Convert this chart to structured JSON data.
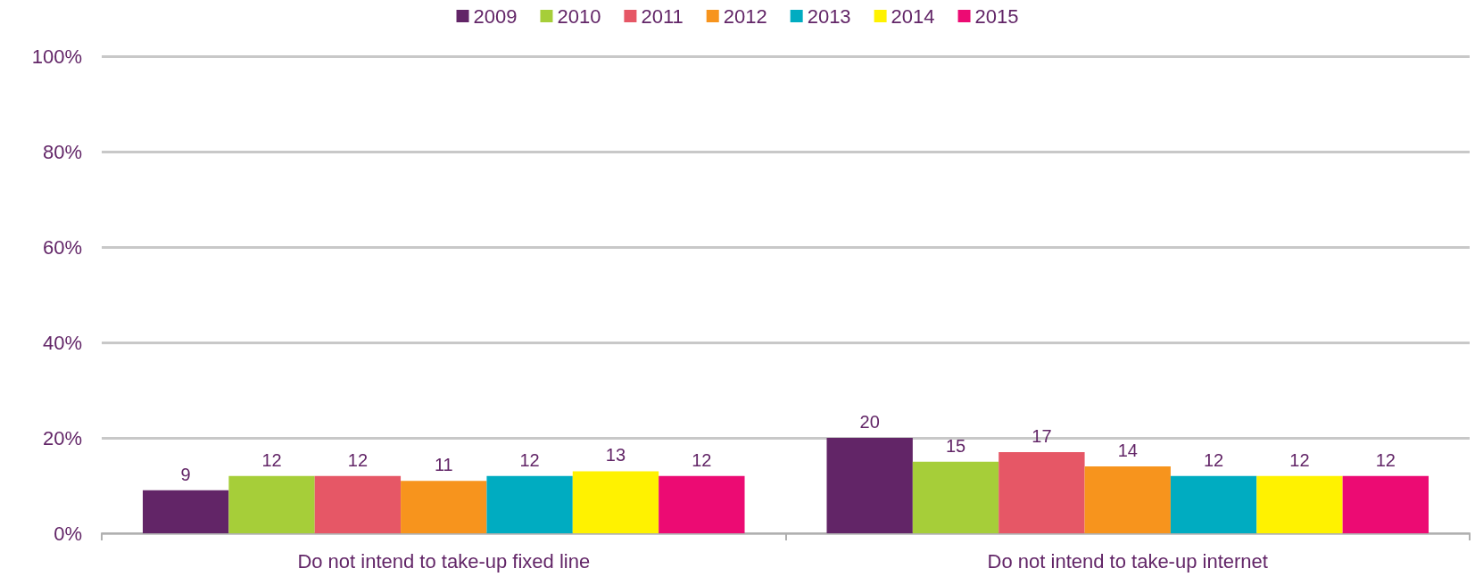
{
  "chart_data": {
    "type": "bar",
    "categories": [
      "Do not intend to take-up fixed line",
      "Do not intend to take-up internet"
    ],
    "series": [
      {
        "name": "2009",
        "color": "#622567",
        "values": [
          9,
          20
        ]
      },
      {
        "name": "2010",
        "color": "#a6ce39",
        "values": [
          12,
          15
        ]
      },
      {
        "name": "2011",
        "color": "#e65766",
        "values": [
          12,
          17
        ]
      },
      {
        "name": "2012",
        "color": "#f7941d",
        "values": [
          11,
          14
        ]
      },
      {
        "name": "2013",
        "color": "#00acc1",
        "values": [
          12,
          12
        ]
      },
      {
        "name": "2014",
        "color": "#fff200",
        "values": [
          13,
          12
        ]
      },
      {
        "name": "2015",
        "color": "#ec0b73",
        "values": [
          12,
          12
        ]
      }
    ],
    "ylim": [
      0,
      100
    ],
    "yticks": [
      {
        "value": 0,
        "label": "0%"
      },
      {
        "value": 20,
        "label": "20%"
      },
      {
        "value": 40,
        "label": "40%"
      },
      {
        "value": 60,
        "label": "60%"
      },
      {
        "value": 80,
        "label": "80%"
      },
      {
        "value": 100,
        "label": "100%"
      }
    ],
    "grid": "y",
    "legend": "top",
    "data_labels": true
  }
}
